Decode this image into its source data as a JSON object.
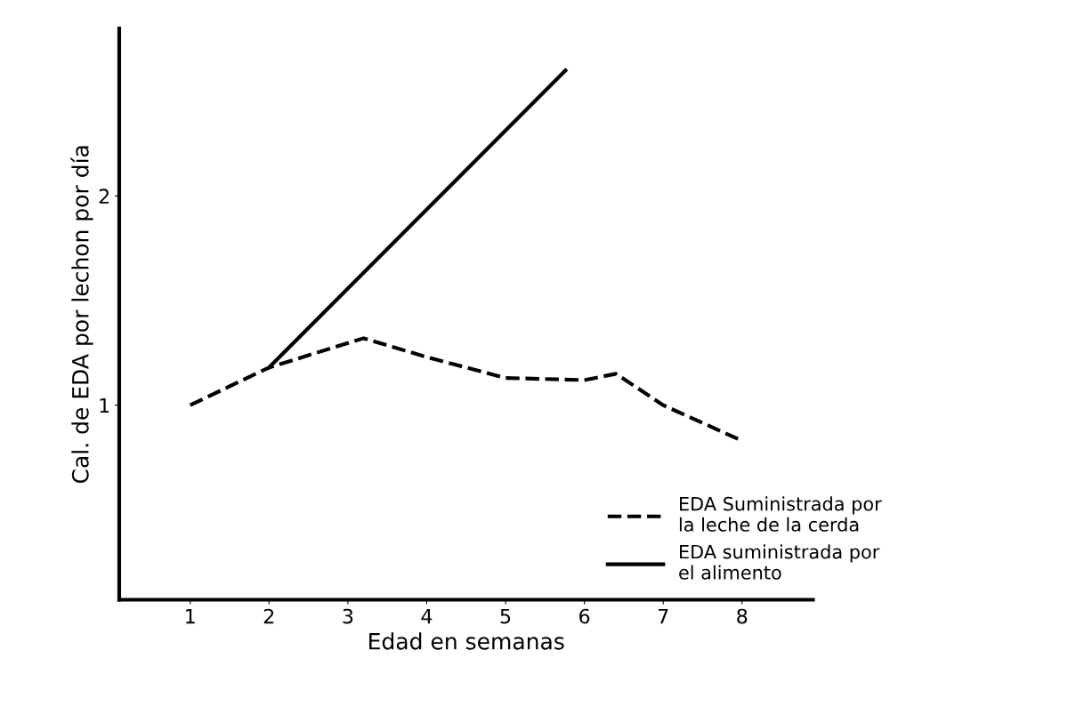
{
  "chart_data": {
    "type": "line",
    "xlabel": "Edad en semanas",
    "ylabel": "Cal. de EDA por lechon por día",
    "xlim": [
      0.1,
      8.9
    ],
    "ylim": [
      0.07,
      2.8
    ],
    "xticks": [
      1,
      2,
      3,
      4,
      5,
      6,
      7,
      8
    ],
    "yticks": [
      1,
      2
    ],
    "grid": false,
    "legend": "bottom right",
    "marker": "none",
    "series": [
      {
        "name": "EDA Suministrada por\nla leche de la cerda",
        "color": "#000000",
        "line_style": "dashed",
        "x": [
          1,
          2,
          3.2,
          4,
          5,
          6,
          6.4,
          7,
          8
        ],
        "values": [
          1.0,
          1.18,
          1.32,
          1.23,
          1.13,
          1.12,
          1.15,
          1.0,
          0.83
        ]
      },
      {
        "name": "EDA suministrada por\nel alimento",
        "color": "#000000",
        "line_style": "solid",
        "x": [
          2,
          5.76
        ],
        "values": [
          1.18,
          2.6
        ]
      }
    ]
  }
}
